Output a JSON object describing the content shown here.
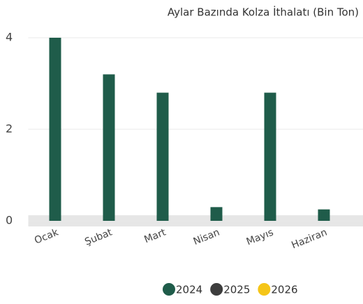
{
  "chart_data": {
    "type": "bar",
    "title": "Aylar Bazında Kolza İthalatı (Bin Ton)",
    "categories": [
      "Ocak",
      "Şubat",
      "Mart",
      "Nisan",
      "Mayıs",
      "Haziran"
    ],
    "series": [
      {
        "name": "2024",
        "color": "#1f5c4a",
        "values": [
          4.0,
          3.2,
          2.8,
          0.3,
          2.8,
          0.25
        ]
      },
      {
        "name": "2025",
        "color": "#3d3d3d",
        "values": [
          null,
          null,
          null,
          null,
          null,
          null
        ]
      },
      {
        "name": "2026",
        "color": "#f5c518",
        "values": [
          null,
          null,
          null,
          null,
          null,
          null
        ]
      }
    ],
    "ylim": [
      0,
      4
    ],
    "yticks": [
      0,
      2,
      4
    ],
    "grid": true
  }
}
